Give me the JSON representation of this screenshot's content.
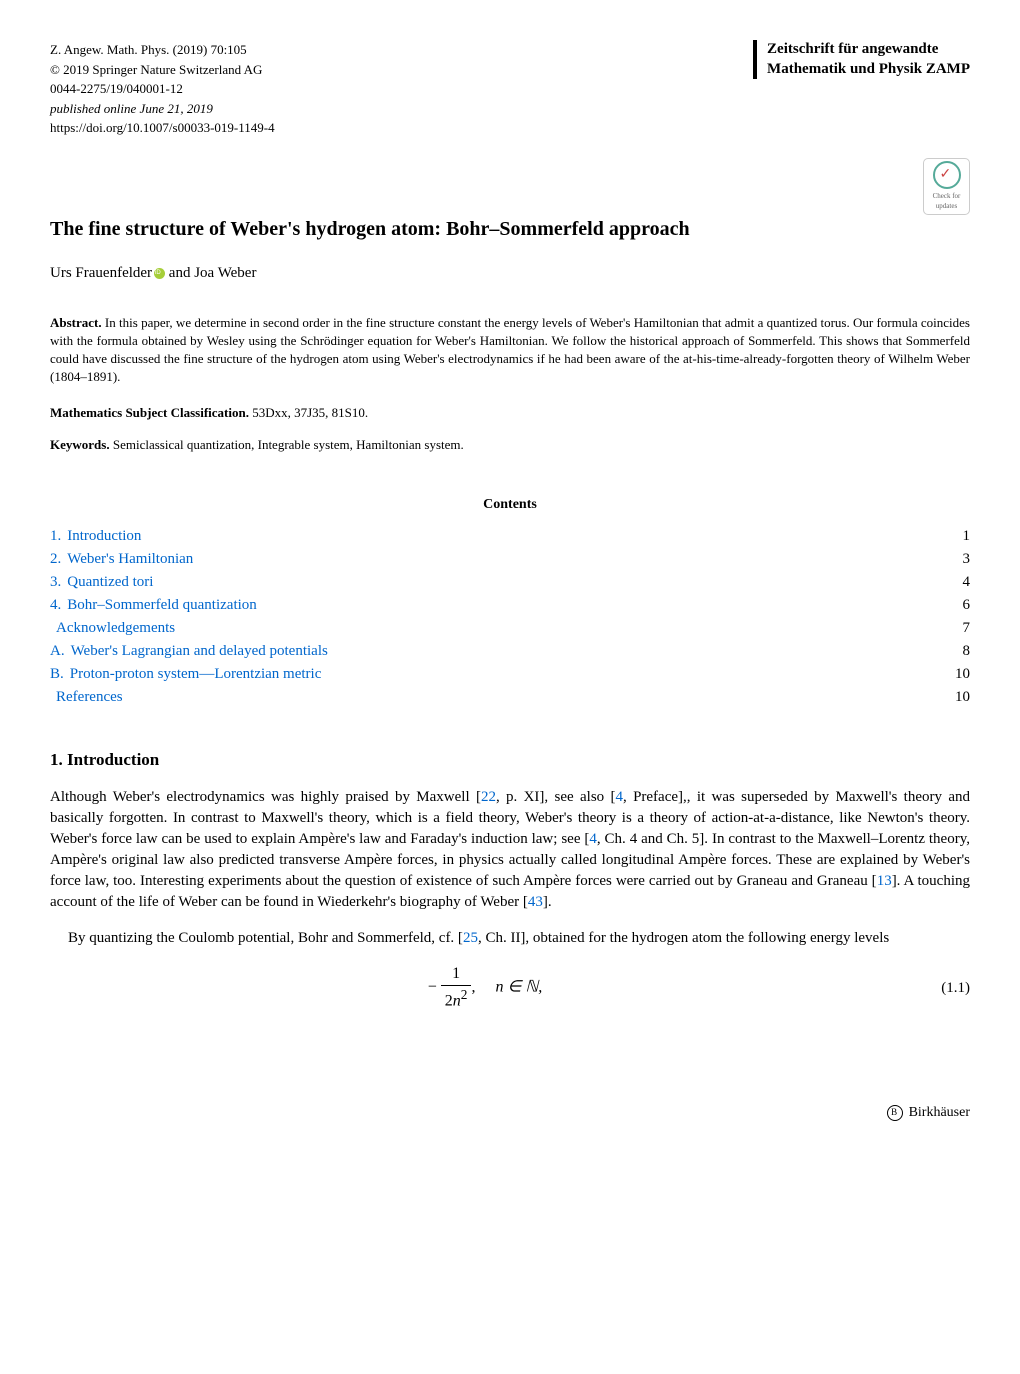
{
  "header": {
    "journal_ref": "Z. Angew. Math. Phys. (2019) 70:105",
    "copyright": "© 2019 Springer Nature Switzerland AG",
    "issn": "0044-2275/19/040001-12",
    "published": "published online June 21, 2019",
    "doi": "https://doi.org/10.1007/s00033-019-1149-4",
    "journal_box_line1": "Zeitschrift für angewandte",
    "journal_box_line2": "Mathematik und Physik ZAMP",
    "crossmark_text": "Check for updates"
  },
  "title": "The fine structure of Weber's hydrogen atom: Bohr–Sommerfeld approach",
  "authors": {
    "author1": "Urs Frauenfelder",
    "conjunction": " and ",
    "author2": "Joa Weber"
  },
  "abstract": {
    "label": "Abstract.",
    "text": " In this paper, we determine in second order in the fine structure constant the energy levels of Weber's Hamiltonian that admit a quantized torus. Our formula coincides with the formula obtained by Wesley using the Schrödinger equation for Weber's Hamiltonian. We follow the historical approach of Sommerfeld. This shows that Sommerfeld could have discussed the fine structure of the hydrogen atom using Weber's electrodynamics if he had been aware of the at-his-time-already-forgotten theory of Wilhelm Weber (1804–1891)."
  },
  "msc": {
    "label": "Mathematics Subject Classification.",
    "text": " 53Dxx, 37J35, 81S10."
  },
  "keywords": {
    "label": "Keywords.",
    "text": " Semiclassical quantization, Integrable system, Hamiltonian system."
  },
  "contents_heading": "Contents",
  "toc": [
    {
      "num": "1.",
      "title": "Introduction",
      "page": "1"
    },
    {
      "num": "2.",
      "title": "Weber's Hamiltonian",
      "page": "3"
    },
    {
      "num": "3.",
      "title": "Quantized tori",
      "page": "4"
    },
    {
      "num": "4.",
      "title": "Bohr–Sommerfeld quantization",
      "page": "6"
    },
    {
      "num": "",
      "title": "Acknowledgements",
      "page": "7"
    },
    {
      "num": "A.",
      "title": "Weber's Lagrangian and delayed potentials",
      "page": "8"
    },
    {
      "num": "B.",
      "title": "Proton-proton system—Lorentzian metric",
      "page": "10"
    },
    {
      "num": "",
      "title": "References",
      "page": "10"
    }
  ],
  "section1": {
    "heading": "1. Introduction",
    "para1_parts": {
      "t1": "Although Weber's electrodynamics was highly praised by Maxwell [",
      "c1": "22",
      "t2": ", p. XI], see also [",
      "c2": "4",
      "t3": ", Preface],, it was superseded by Maxwell's theory and basically forgotten. In contrast to Maxwell's theory, which is a field theory, Weber's theory is a theory of action-at-a-distance, like Newton's theory. Weber's force law can be used to explain Ampère's law and Faraday's induction law; see [",
      "c3": "4",
      "t4": ", Ch. 4 and Ch. 5]. In contrast to the Maxwell–Lorentz theory, Ampère's original law also predicted transverse Ampère forces, in physics actually called longitudinal Ampère forces. These are explained by Weber's force law, too. Interesting experiments about the question of existence of such Ampère forces were carried out by Graneau and Graneau [",
      "c4": "13",
      "t5": "]. A touching account of the life of Weber can be found in Wiederkehr's biography of Weber [",
      "c5": "43",
      "t6": "]."
    },
    "para2_parts": {
      "t1": "By quantizing the Coulomb potential, Bohr and Sommerfeld, cf. [",
      "c1": "25",
      "t2": ", Ch. II], obtained for the hydrogen atom the following energy levels"
    },
    "equation": {
      "minus": "−",
      "num": "1",
      "den_prefix": "2",
      "den_var": "n",
      "den_exp": "2",
      "comma": ",",
      "n_in": "n ∈ ℕ,",
      "number": "(1.1)"
    }
  },
  "publisher": "Birkhäuser",
  "colors": {
    "link": "#0066cc",
    "text": "#000000",
    "background": "#ffffff",
    "orcid": "#a6ce39"
  },
  "typography": {
    "body_fontsize": 15,
    "small_fontsize": 13,
    "title_fontsize": 20,
    "section_fontsize": 17,
    "font_family": "Times New Roman"
  }
}
